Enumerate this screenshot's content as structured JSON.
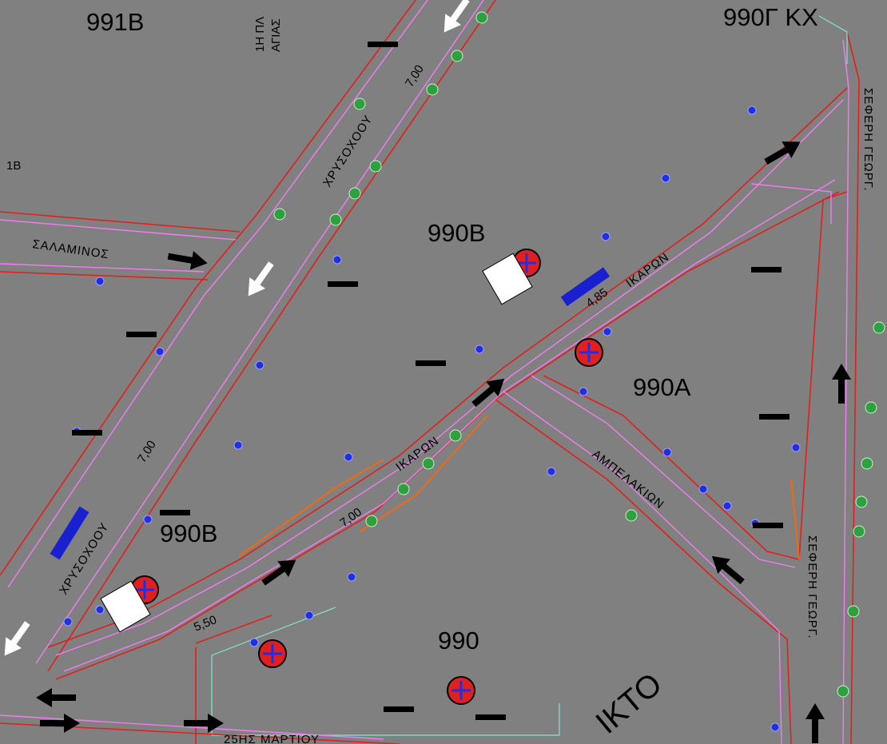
{
  "blocks": [
    "991Β",
    "990Γ ΚΧ",
    "990Β",
    "990Β",
    "990Α",
    "990"
  ],
  "streets": [
    "ΧΡΥΣΟΧΟΟΥ",
    "ΧΡΥΣΟΧΟΟΥ",
    "ΣΑΛΑΜΙΝΟΣ",
    "ΙΚΑΡΩΝ",
    "ΙΚΑΡΩΝ",
    "ΑΜΠΕΛΑΚΙΩΝ",
    "ΣΕΦΕΡΗ ΓΕΩΡΓ.",
    "ΣΕΦΕΡΗ ΓΕΩΡΓ.",
    "25ΗΣ ΜΑΡΤΙΟΥ"
  ],
  "widths": [
    "7,00",
    "7,00",
    "7,00",
    "4,85",
    "5,50"
  ],
  "fragments": [
    "1Β",
    "1Η ΠΛ",
    "ΑΓΙΑΣ",
    "ΙΚΤΟ"
  ]
}
